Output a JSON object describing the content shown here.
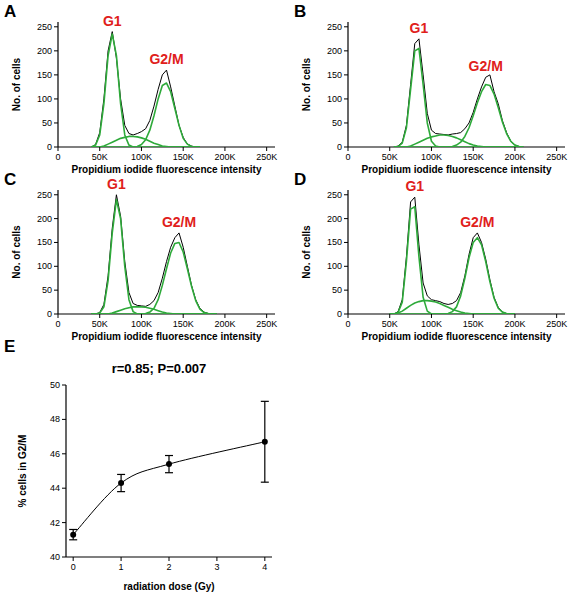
{
  "chart_data": [
    {
      "type": "line",
      "title": "A",
      "x_label": "Propidium iodide fluorescence intensity",
      "y_label": "No. of cells",
      "annotations": [
        "G1",
        "G2/M"
      ],
      "grid": false,
      "xlim": [
        0,
        260000
      ],
      "ylim": [
        0,
        260
      ],
      "xticks": [
        0,
        {
          "value": 50000,
          "label": "50K"
        },
        {
          "value": 100000,
          "label": "100K"
        },
        {
          "value": 150000,
          "label": "150K"
        },
        {
          "value": 200000,
          "label": "200K"
        },
        {
          "value": 250000,
          "label": "250K"
        }
      ],
      "yticks": [
        0,
        50,
        100,
        150,
        200,
        250
      ],
      "x": [
        40000,
        45000,
        50000,
        55000,
        60000,
        65000,
        70000,
        75000,
        80000,
        85000,
        90000,
        95000,
        100000,
        105000,
        110000,
        115000,
        120000,
        125000,
        130000,
        135000,
        140000,
        145000,
        150000,
        155000,
        160000,
        165000,
        170000
      ],
      "series": [
        {
          "color": "#000000",
          "values": [
            0,
            5,
            30,
            100,
            200,
            240,
            185,
            100,
            45,
            28,
            25,
            28,
            32,
            38,
            55,
            85,
            120,
            150,
            160,
            125,
            85,
            45,
            20,
            6,
            2,
            0,
            0
          ]
        },
        {
          "color": "#2eaa3a",
          "values": [
            0,
            4,
            25,
            90,
            190,
            235,
            190,
            90,
            25,
            4,
            0,
            0,
            0,
            0,
            0,
            0,
            0,
            0,
            0,
            0,
            0,
            0,
            0,
            0,
            0,
            0,
            0
          ]
        },
        {
          "color": "#2eaa3a",
          "values": [
            0,
            0,
            0,
            2,
            6,
            10,
            14,
            18,
            20,
            22,
            22,
            21,
            19,
            16,
            12,
            8,
            5,
            2,
            1,
            0,
            0,
            0,
            0,
            0,
            0,
            0,
            0
          ]
        },
        {
          "color": "#2eaa3a",
          "values": [
            0,
            0,
            0,
            0,
            0,
            0,
            0,
            0,
            0,
            0,
            0,
            1,
            5,
            15,
            35,
            65,
            100,
            128,
            133,
            115,
            80,
            45,
            18,
            6,
            1,
            0,
            0
          ]
        }
      ]
    },
    {
      "type": "line",
      "title": "B",
      "x_label": "Propidium iodide fluorescence intensity",
      "y_label": "No. of cells",
      "annotations": [
        "G1",
        "G2/M"
      ],
      "grid": false,
      "xlim": [
        0,
        260000
      ],
      "ylim": [
        0,
        260
      ],
      "xticks": [
        0,
        {
          "value": 50000,
          "label": "50K"
        },
        {
          "value": 100000,
          "label": "100K"
        },
        {
          "value": 150000,
          "label": "150K"
        },
        {
          "value": 200000,
          "label": "200K"
        },
        {
          "value": 250000,
          "label": "250K"
        }
      ],
      "yticks": [
        0,
        50,
        100,
        150,
        200,
        250
      ],
      "x": [
        55000,
        60000,
        65000,
        70000,
        75000,
        80000,
        85000,
        90000,
        95000,
        100000,
        105000,
        110000,
        115000,
        120000,
        125000,
        130000,
        135000,
        140000,
        145000,
        150000,
        155000,
        160000,
        165000,
        170000,
        175000,
        180000,
        185000,
        190000,
        195000,
        200000,
        205000,
        210000
      ],
      "series": [
        {
          "color": "#000000",
          "values": [
            0,
            2,
            10,
            45,
            130,
            215,
            225,
            150,
            70,
            35,
            28,
            27,
            26,
            25,
            27,
            28,
            30,
            38,
            50,
            72,
            100,
            125,
            145,
            150,
            115,
            90,
            55,
            30,
            12,
            4,
            1,
            0
          ]
        },
        {
          "color": "#2eaa3a",
          "values": [
            0,
            1,
            8,
            40,
            120,
            200,
            205,
            130,
            50,
            12,
            2,
            0,
            0,
            0,
            0,
            0,
            0,
            0,
            0,
            0,
            0,
            0,
            0,
            0,
            0,
            0,
            0,
            0,
            0,
            0,
            0,
            0
          ]
        },
        {
          "color": "#2eaa3a",
          "values": [
            0,
            0,
            0,
            0,
            2,
            6,
            10,
            14,
            18,
            21,
            23,
            25,
            25,
            24,
            22,
            19,
            15,
            11,
            7,
            4,
            2,
            1,
            0,
            0,
            0,
            0,
            0,
            0,
            0,
            0,
            0,
            0
          ]
        },
        {
          "color": "#2eaa3a",
          "values": [
            0,
            0,
            0,
            0,
            0,
            0,
            0,
            0,
            0,
            0,
            0,
            0,
            0,
            0,
            1,
            4,
            10,
            22,
            40,
            65,
            92,
            115,
            130,
            128,
            110,
            82,
            52,
            28,
            12,
            4,
            1,
            0
          ]
        }
      ]
    },
    {
      "type": "line",
      "title": "C",
      "x_label": "Propidium iodide fluorescence intensity",
      "y_label": "No. of cells",
      "annotations": [
        "G1",
        "G2/M"
      ],
      "grid": false,
      "xlim": [
        0,
        260000
      ],
      "ylim": [
        0,
        260
      ],
      "xticks": [
        0,
        {
          "value": 50000,
          "label": "50K"
        },
        {
          "value": 100000,
          "label": "100K"
        },
        {
          "value": 150000,
          "label": "150K"
        },
        {
          "value": 200000,
          "label": "200K"
        },
        {
          "value": 250000,
          "label": "250K"
        }
      ],
      "yticks": [
        0,
        50,
        100,
        150,
        200,
        250
      ],
      "x": [
        40000,
        45000,
        50000,
        55000,
        60000,
        65000,
        70000,
        75000,
        80000,
        85000,
        90000,
        95000,
        100000,
        105000,
        110000,
        115000,
        120000,
        125000,
        130000,
        135000,
        140000,
        145000,
        150000,
        155000,
        160000,
        165000,
        170000,
        175000,
        180000,
        185000,
        190000
      ],
      "series": [
        {
          "color": "#000000",
          "values": [
            0,
            0,
            3,
            20,
            80,
            180,
            250,
            205,
            110,
            45,
            22,
            18,
            17,
            16,
            20,
            28,
            45,
            75,
            110,
            140,
            160,
            170,
            140,
            100,
            60,
            30,
            12,
            4,
            1,
            0,
            0
          ]
        },
        {
          "color": "#2eaa3a",
          "values": [
            0,
            0,
            2,
            15,
            70,
            170,
            240,
            200,
            100,
            30,
            5,
            0,
            0,
            0,
            0,
            0,
            0,
            0,
            0,
            0,
            0,
            0,
            0,
            0,
            0,
            0,
            0,
            0,
            0,
            0,
            0
          ]
        },
        {
          "color": "#2eaa3a",
          "values": [
            0,
            0,
            0,
            0,
            0,
            2,
            5,
            8,
            11,
            13,
            15,
            15,
            15,
            14,
            12,
            10,
            7,
            4,
            2,
            1,
            0,
            0,
            0,
            0,
            0,
            0,
            0,
            0,
            0,
            0,
            0
          ]
        },
        {
          "color": "#2eaa3a",
          "values": [
            0,
            0,
            0,
            0,
            0,
            0,
            0,
            0,
            0,
            0,
            0,
            0,
            0,
            1,
            4,
            12,
            30,
            60,
            95,
            128,
            148,
            150,
            130,
            95,
            58,
            28,
            10,
            3,
            1,
            0,
            0
          ]
        }
      ]
    },
    {
      "type": "line",
      "title": "D",
      "x_label": "Propidium iodide fluorescence intensity",
      "y_label": "No. of cells",
      "annotations": [
        "G1",
        "G2/M"
      ],
      "grid": false,
      "xlim": [
        0,
        260000
      ],
      "ylim": [
        0,
        260
      ],
      "xticks": [
        0,
        {
          "value": 50000,
          "label": "50K"
        },
        {
          "value": 100000,
          "label": "100K"
        },
        {
          "value": 150000,
          "label": "150K"
        },
        {
          "value": 200000,
          "label": "200K"
        },
        {
          "value": 250000,
          "label": "250K"
        }
      ],
      "yticks": [
        0,
        50,
        100,
        150,
        200,
        250
      ],
      "x": [
        50000,
        55000,
        60000,
        65000,
        70000,
        75000,
        80000,
        85000,
        90000,
        95000,
        100000,
        105000,
        110000,
        115000,
        120000,
        125000,
        130000,
        135000,
        140000,
        145000,
        150000,
        155000,
        160000,
        165000,
        170000,
        175000,
        180000,
        185000,
        190000,
        195000,
        200000
      ],
      "series": [
        {
          "color": "#000000",
          "values": [
            0,
            0,
            5,
            30,
            120,
            235,
            245,
            145,
            65,
            38,
            30,
            28,
            26,
            22,
            20,
            22,
            28,
            45,
            80,
            125,
            160,
            170,
            150,
            115,
            72,
            35,
            14,
            4,
            1,
            0,
            0
          ]
        },
        {
          "color": "#2eaa3a",
          "values": [
            0,
            0,
            3,
            25,
            110,
            220,
            225,
            120,
            35,
            6,
            0,
            0,
            0,
            0,
            0,
            0,
            0,
            0,
            0,
            0,
            0,
            0,
            0,
            0,
            0,
            0,
            0,
            0,
            0,
            0,
            0
          ]
        },
        {
          "color": "#2eaa3a",
          "values": [
            0,
            0,
            2,
            6,
            12,
            18,
            23,
            26,
            28,
            28,
            27,
            25,
            22,
            18,
            14,
            10,
            7,
            4,
            2,
            1,
            0,
            0,
            0,
            0,
            0,
            0,
            0,
            0,
            0,
            0,
            0
          ]
        },
        {
          "color": "#2eaa3a",
          "values": [
            0,
            0,
            0,
            0,
            0,
            0,
            0,
            0,
            0,
            0,
            0,
            0,
            0,
            0,
            1,
            5,
            15,
            38,
            75,
            118,
            150,
            160,
            145,
            110,
            68,
            33,
            12,
            4,
            1,
            0,
            0
          ]
        }
      ]
    },
    {
      "type": "line",
      "title": "E",
      "x_label": "radiation dose (Gy)",
      "y_label": "% cells in G2/M",
      "annotations": [
        "r=0.85; P=0.007"
      ],
      "grid": false,
      "xlim": [
        -0.15,
        4.15
      ],
      "ylim": [
        40,
        50
      ],
      "xticks": [
        0,
        1,
        2,
        3,
        4
      ],
      "yticks": [
        40,
        42,
        44,
        46,
        48,
        50
      ],
      "x": [
        0,
        1,
        2,
        4
      ],
      "series": [
        {
          "color": "#000000",
          "marker": "circle",
          "line_style": "smooth",
          "values": [
            41.3,
            44.3,
            45.4,
            46.7
          ],
          "errors": [
            0.3,
            0.5,
            0.5,
            2.35
          ]
        }
      ]
    }
  ]
}
